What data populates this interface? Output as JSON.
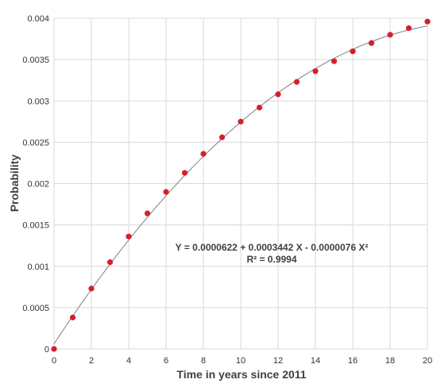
{
  "chart_data": {
    "type": "scatter",
    "xlabel": "Time in years since 2011",
    "ylabel": "Probability",
    "xlim": [
      0,
      20
    ],
    "ylim": [
      0,
      0.004
    ],
    "x_ticks": [
      0,
      2,
      4,
      6,
      8,
      10,
      12,
      14,
      16,
      18,
      20
    ],
    "y_ticks": [
      "0",
      "0.0005",
      "0.001",
      "0.0015",
      "0.002",
      "0.0025",
      "0.003",
      "0.0035",
      "0.004"
    ],
    "grid": true,
    "points": {
      "color": "#d81e28",
      "x": [
        0,
        1,
        2,
        3,
        4,
        5,
        6,
        7,
        8,
        9,
        10,
        11,
        12,
        13,
        14,
        15,
        16,
        17,
        18,
        19,
        20
      ],
      "y": [
        0.0,
        0.00038,
        0.00073,
        0.00105,
        0.00136,
        0.00164,
        0.0019,
        0.00213,
        0.00236,
        0.00256,
        0.00275,
        0.00292,
        0.00308,
        0.00323,
        0.00336,
        0.00348,
        0.0036,
        0.0037,
        0.0038,
        0.00388,
        0.00396
      ]
    },
    "trendline": {
      "color": "#7f7f7f",
      "intercept": 6.22e-05,
      "b1": 0.0003442,
      "b2": -7.6e-06
    },
    "annotations": {
      "equation": "Y = 0.0000622 + 0.0003442 X - 0.0000076 X²",
      "r2": "R² = 0.9994"
    }
  }
}
